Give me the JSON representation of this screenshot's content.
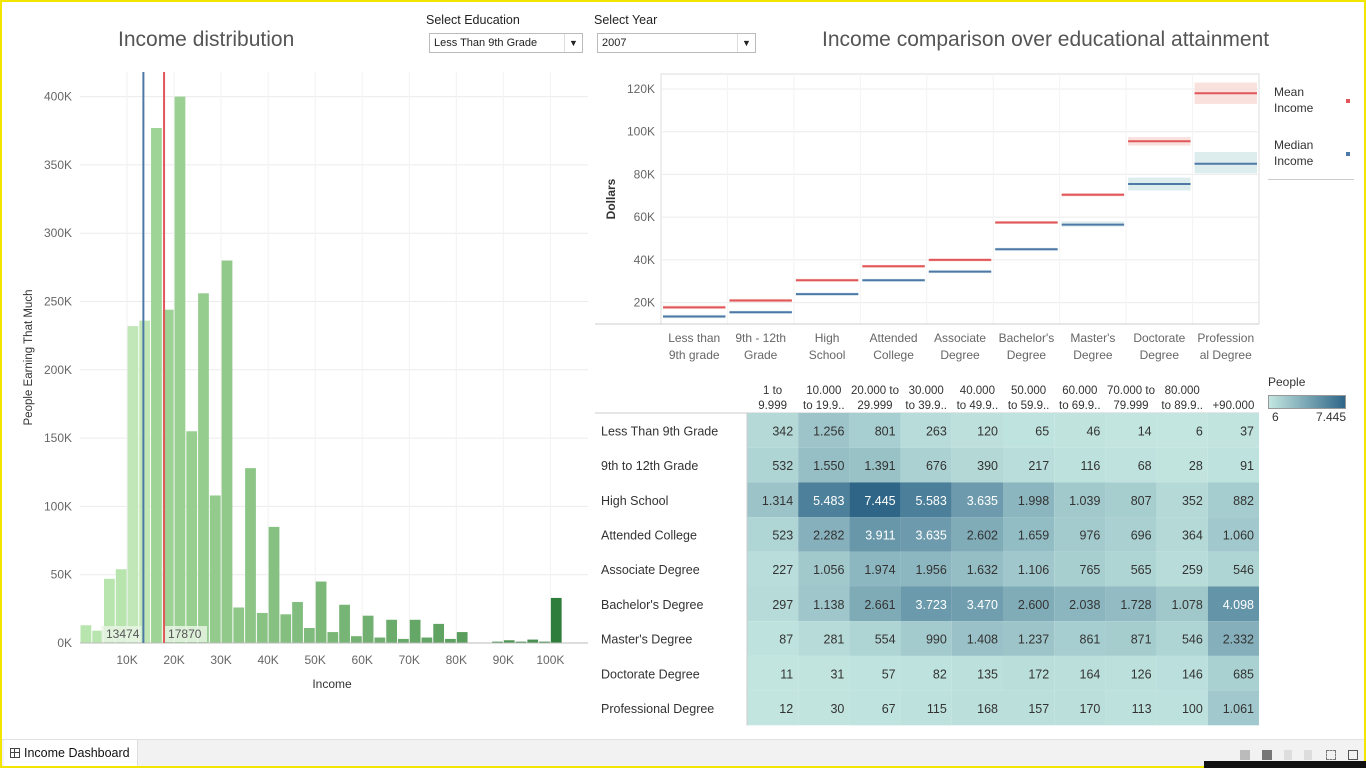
{
  "dashboard": {
    "left_title": "Income distribution",
    "right_title": "Income comparison over educational attainment",
    "tab_label": "Income Dashboard"
  },
  "filters": {
    "education_label": "Select Education",
    "education_value": "Less Than 9th Grade",
    "year_label": "Select Year",
    "year_value": "2007"
  },
  "legend": {
    "mean_label_1": "Mean",
    "mean_label_2": "Income",
    "median_label_1": "Median",
    "median_label_2": "Income",
    "mean_color": "#e15759",
    "median_color": "#4e79a7"
  },
  "people_legend": {
    "title": "People",
    "min": "6",
    "max": "7.445",
    "low_color": "#c3e6e0",
    "high_color": "#2f6688"
  },
  "chart_data": [
    {
      "type": "bar",
      "title": "Income distribution",
      "xlabel": "Income",
      "ylabel": "People Earning That Much",
      "x_ticks": [
        10000,
        20000,
        30000,
        40000,
        50000,
        60000,
        70000,
        80000,
        90000,
        100000
      ],
      "x_tick_labels": [
        "10K",
        "20K",
        "30K",
        "40K",
        "50K",
        "60K",
        "70K",
        "80K",
        "90K",
        "100K"
      ],
      "y_ticks": [
        0,
        50000,
        100000,
        150000,
        200000,
        250000,
        300000,
        350000,
        400000
      ],
      "y_tick_labels": [
        "0K",
        "50K",
        "100K",
        "150K",
        "200K",
        "250K",
        "300K",
        "350K",
        "400K"
      ],
      "xlim": [
        0,
        108000
      ],
      "ylim": [
        0,
        418000
      ],
      "bin_width": 2500,
      "bins": [
        0,
        2500,
        5000,
        7500,
        10000,
        12500,
        15000,
        17500,
        20000,
        22500,
        25000,
        27500,
        30000,
        32500,
        35000,
        37500,
        40000,
        42500,
        45000,
        47500,
        50000,
        52500,
        55000,
        57500,
        60000,
        62500,
        65000,
        67500,
        70000,
        72500,
        75000,
        77500,
        80000,
        82500,
        85000,
        87500,
        90000,
        92500,
        95000,
        97500,
        100000
      ],
      "values": [
        13000,
        9000,
        47000,
        54000,
        232000,
        236000,
        377000,
        244000,
        400000,
        155000,
        256000,
        108000,
        280000,
        26000,
        128000,
        22000,
        85000,
        21000,
        30000,
        11000,
        45000,
        8000,
        28000,
        5000,
        20000,
        4000,
        17000,
        3000,
        17000,
        4000,
        14000,
        3000,
        8000,
        0,
        0,
        1000,
        2000,
        1000,
        2500,
        1000,
        33000
      ],
      "median_value": 13474,
      "mean_value": 17870,
      "median_label": "13474",
      "mean_label": "17870",
      "median_color": "#4e79a7",
      "mean_color": "#e15759"
    },
    {
      "type": "line",
      "title": "Income comparison over educational attainment",
      "ylabel": "Dollars",
      "categories": [
        "Less than 9th grade",
        "9th - 12th Grade",
        "High School",
        "Attended College",
        "Associate Degree",
        "Bachelor's Degree",
        "Master's Degree",
        "Doctorate Degree",
        "Professional Degree"
      ],
      "category_lines": [
        [
          "Less than",
          "9th grade"
        ],
        [
          "9th - 12th",
          "Grade"
        ],
        [
          "High",
          "School"
        ],
        [
          "Attended",
          "College"
        ],
        [
          "Associate",
          "Degree"
        ],
        [
          "Bachelor's",
          "Degree"
        ],
        [
          "Master's",
          "Degree"
        ],
        [
          "Doctorate",
          "Degree"
        ],
        [
          "Profession",
          "al Degree"
        ]
      ],
      "y_ticks": [
        20000,
        40000,
        60000,
        80000,
        100000,
        120000
      ],
      "y_tick_labels": [
        "20K",
        "40K",
        "60K",
        "80K",
        "100K",
        "120K"
      ],
      "ylim": [
        10000,
        127000
      ],
      "series": [
        {
          "name": "Mean Income",
          "color": "#e15759",
          "values": [
            17800,
            21000,
            30500,
            37000,
            40000,
            57500,
            70500,
            95500,
            118000
          ],
          "band_low": [
            17000,
            20200,
            29800,
            36300,
            39300,
            56800,
            69700,
            93500,
            113000
          ],
          "band_high": [
            18600,
            21800,
            31200,
            37700,
            40700,
            58200,
            71300,
            97500,
            123000
          ]
        },
        {
          "name": "Median Income",
          "color": "#4e79a7",
          "values": [
            13500,
            15500,
            24000,
            30500,
            34500,
            45000,
            56500,
            75500,
            85000
          ],
          "band_low": [
            12700,
            14800,
            23300,
            29800,
            33800,
            44300,
            55500,
            72500,
            80500
          ],
          "band_high": [
            14300,
            16200,
            24700,
            31200,
            35200,
            45700,
            58000,
            78500,
            90500
          ]
        }
      ]
    },
    {
      "type": "heatmap",
      "title": "People",
      "columns": [
        [
          "1 to",
          "9.999"
        ],
        [
          "10.000",
          "to 19.9.."
        ],
        [
          "20.000 to",
          "29.999"
        ],
        [
          "30.000",
          "to 39.9.."
        ],
        [
          "40.000",
          "to 49.9.."
        ],
        [
          "50.000",
          "to 59.9.."
        ],
        [
          "60.000",
          "to 69.9.."
        ],
        [
          "70.000 to",
          "79.999"
        ],
        [
          "80.000",
          "to 89.9.."
        ],
        [
          "",
          "+90.000"
        ]
      ],
      "rows": [
        "Less Than 9th Grade",
        "9th to 12th Grade",
        "High School",
        "Attended College",
        "Associate Degree",
        "Bachelor's Degree",
        "Master's Degree",
        "Doctorate Degree",
        "Professional Degree"
      ],
      "values": [
        [
          342,
          1256,
          801,
          263,
          120,
          65,
          46,
          14,
          6,
          37
        ],
        [
          532,
          1550,
          1391,
          676,
          390,
          217,
          116,
          68,
          28,
          91
        ],
        [
          1314,
          5483,
          7445,
          5583,
          3635,
          1998,
          1039,
          807,
          352,
          882
        ],
        [
          523,
          2282,
          3911,
          3635,
          2602,
          1659,
          976,
          696,
          364,
          1060
        ],
        [
          227,
          1056,
          1974,
          1956,
          1632,
          1106,
          765,
          565,
          259,
          546
        ],
        [
          297,
          1138,
          2661,
          3723,
          3470,
          2600,
          2038,
          1728,
          1078,
          4098
        ],
        [
          87,
          281,
          554,
          990,
          1408,
          1237,
          861,
          871,
          546,
          2332
        ],
        [
          11,
          31,
          57,
          82,
          135,
          172,
          164,
          126,
          146,
          685
        ],
        [
          12,
          30,
          67,
          115,
          168,
          157,
          170,
          113,
          100,
          1061
        ]
      ],
      "labels": [
        [
          "342",
          "1.256",
          "801",
          "263",
          "120",
          "65",
          "46",
          "14",
          "6",
          "37"
        ],
        [
          "532",
          "1.550",
          "1.391",
          "676",
          "390",
          "217",
          "116",
          "68",
          "28",
          "91"
        ],
        [
          "1.314",
          "5.483",
          "7.445",
          "5.583",
          "3.635",
          "1.998",
          "1.039",
          "807",
          "352",
          "882"
        ],
        [
          "523",
          "2.282",
          "3.911",
          "3.635",
          "2.602",
          "1.659",
          "976",
          "696",
          "364",
          "1.060"
        ],
        [
          "227",
          "1.056",
          "1.974",
          "1.956",
          "1.632",
          "1.106",
          "765",
          "565",
          "259",
          "546"
        ],
        [
          "297",
          "1.138",
          "2.661",
          "3.723",
          "3.470",
          "2.600",
          "2.038",
          "1.728",
          "1.078",
          "4.098"
        ],
        [
          "87",
          "281",
          "554",
          "990",
          "1.408",
          "1.237",
          "861",
          "871",
          "546",
          "2.332"
        ],
        [
          "11",
          "31",
          "57",
          "82",
          "135",
          "172",
          "164",
          "126",
          "146",
          "685"
        ],
        [
          "12",
          "30",
          "67",
          "115",
          "168",
          "157",
          "170",
          "113",
          "100",
          "1.061"
        ]
      ],
      "color_min": 6,
      "color_max": 7445
    }
  ]
}
